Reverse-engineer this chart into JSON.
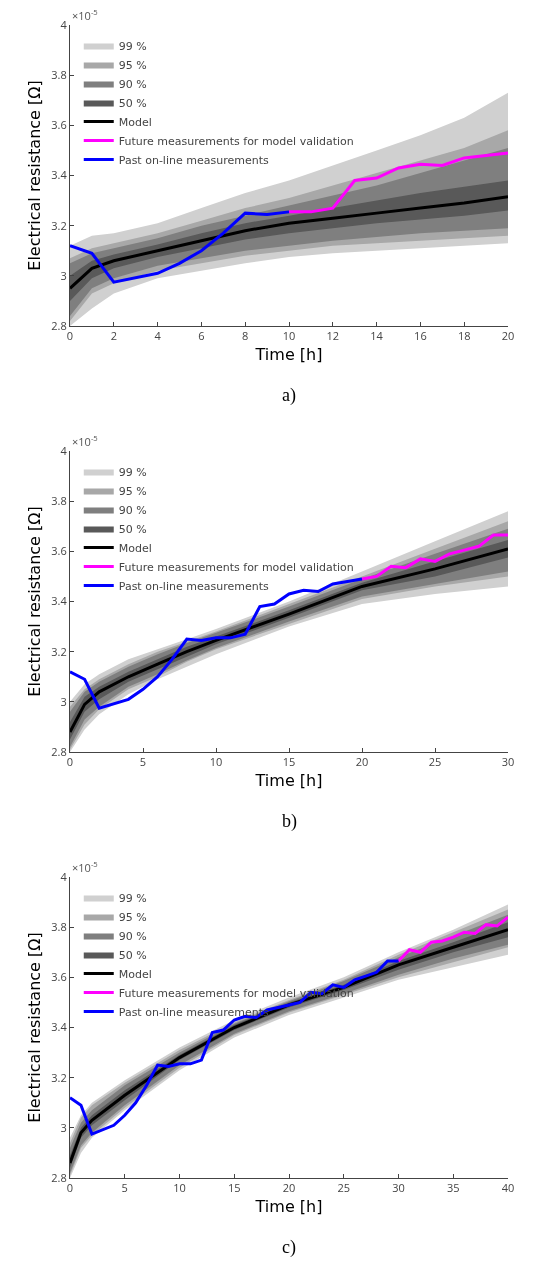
{
  "chart_data": [
    {
      "type": "line",
      "xlabel": "Time [h]",
      "ylabel": "Electrical resistance [Ω]",
      "annotations": [
        "×10$^{-5}$",
        "a)"
      ],
      "xlim": [
        0,
        20
      ],
      "xticks": [
        0,
        2,
        4,
        6,
        8,
        10,
        12,
        14,
        16,
        18,
        20
      ],
      "ylim": [
        2.8,
        4
      ],
      "yticks": [
        2.8,
        3,
        3.2,
        3.4,
        3.6,
        3.8,
        4
      ],
      "grid": false,
      "legend": "top left",
      "marker": "none",
      "line_style": "solid",
      "series": [
        {
          "name": "99 %",
          "type": "area",
          "color": "#d0d0d0",
          "x": [
            0,
            1,
            2,
            4,
            6,
            8,
            10,
            12,
            14,
            16,
            18,
            20
          ],
          "values": [
            null,
            null,
            null,
            null,
            null,
            null,
            null,
            null,
            null,
            null,
            null,
            null
          ],
          "upper": [
            3.12,
            3.16,
            3.17,
            3.21,
            3.27,
            3.33,
            3.38,
            3.44,
            3.5,
            3.56,
            3.63,
            3.73
          ],
          "lower": [
            2.8,
            2.87,
            2.93,
            2.99,
            3.02,
            3.05,
            3.075,
            3.09,
            3.1,
            3.11,
            3.12,
            3.13
          ]
        },
        {
          "name": "95 %",
          "type": "area",
          "color": "#a8a8a8",
          "x": [
            0,
            1,
            2,
            4,
            6,
            8,
            10,
            12,
            14,
            16,
            18,
            20
          ],
          "values": [
            null,
            null,
            null,
            null,
            null,
            null,
            null,
            null,
            null,
            null,
            null,
            null
          ],
          "upper": [
            3.07,
            3.11,
            3.13,
            3.17,
            3.22,
            3.27,
            3.31,
            3.36,
            3.41,
            3.46,
            3.51,
            3.58
          ],
          "lower": [
            2.82,
            2.93,
            2.97,
            3.02,
            3.05,
            3.08,
            3.1,
            3.12,
            3.13,
            3.14,
            3.15,
            3.16
          ]
        },
        {
          "name": "90 %",
          "type": "area",
          "color": "#7f7f7f",
          "x": [
            0,
            1,
            2,
            4,
            6,
            8,
            10,
            12,
            14,
            16,
            18,
            20
          ],
          "values": [
            null,
            null,
            null,
            null,
            null,
            null,
            null,
            null,
            null,
            null,
            null,
            null
          ],
          "upper": [
            3.05,
            3.09,
            3.11,
            3.15,
            3.2,
            3.24,
            3.28,
            3.32,
            3.36,
            3.41,
            3.46,
            3.51
          ],
          "lower": [
            2.84,
            2.95,
            2.99,
            3.04,
            3.07,
            3.1,
            3.12,
            3.14,
            3.155,
            3.17,
            3.18,
            3.19
          ]
        },
        {
          "name": "50 %",
          "type": "area",
          "color": "#595959",
          "x": [
            0,
            1,
            2,
            4,
            6,
            8,
            10,
            12,
            14,
            16,
            18,
            20
          ],
          "values": [
            null,
            null,
            null,
            null,
            null,
            null,
            null,
            null,
            null,
            null,
            null,
            null
          ],
          "upper": [
            3.0,
            3.06,
            3.085,
            3.125,
            3.17,
            3.21,
            3.24,
            3.27,
            3.3,
            3.33,
            3.355,
            3.38
          ],
          "lower": [
            2.9,
            2.99,
            3.03,
            3.075,
            3.11,
            3.145,
            3.17,
            3.19,
            3.21,
            3.225,
            3.24,
            3.26
          ]
        },
        {
          "name": "Model",
          "type": "line",
          "color": "#000000",
          "x": [
            0,
            1,
            2,
            4,
            6,
            8,
            10,
            12,
            14,
            16,
            18,
            20
          ],
          "values": [
            2.95,
            3.03,
            3.06,
            3.1,
            3.14,
            3.18,
            3.21,
            3.23,
            3.25,
            3.27,
            3.29,
            3.315
          ]
        },
        {
          "name": "Future measurements for model validation",
          "type": "line",
          "color": "#ff00ff",
          "x": [
            10,
            11,
            12,
            13,
            14,
            15,
            16,
            17,
            18,
            19,
            20
          ],
          "values": [
            3.255,
            3.255,
            3.27,
            3.38,
            3.39,
            3.43,
            3.445,
            3.44,
            3.47,
            3.48,
            3.49
          ]
        },
        {
          "name": "Past on-line measurements",
          "type": "line",
          "color": "#0000ff",
          "x": [
            0,
            1,
            2,
            4,
            5,
            6,
            7,
            8,
            9,
            10
          ],
          "values": [
            3.12,
            3.09,
            2.975,
            3.01,
            3.05,
            3.1,
            3.17,
            3.25,
            3.245,
            3.255
          ]
        }
      ]
    },
    {
      "type": "line",
      "xlabel": "Time [h]",
      "ylabel": "Electrical resistance [Ω]",
      "annotations": [
        "×10$^{-5}$",
        "b)"
      ],
      "xlim": [
        0,
        30
      ],
      "xticks": [
        0,
        5,
        10,
        15,
        20,
        25,
        30
      ],
      "ylim": [
        2.8,
        4
      ],
      "yticks": [
        2.8,
        3,
        3.2,
        3.4,
        3.6,
        3.8,
        4
      ],
      "grid": false,
      "legend": "top left",
      "marker": "none",
      "line_style": "solid",
      "series": [
        {
          "name": "99 %",
          "type": "area",
          "color": "#d0d0d0",
          "x": [
            0,
            1,
            2,
            4,
            6,
            8,
            10,
            15,
            20,
            25,
            30
          ],
          "values": [
            null,
            null,
            null,
            null,
            null,
            null,
            null,
            null,
            null,
            null,
            null
          ],
          "upper": [
            3.0,
            3.07,
            3.11,
            3.17,
            3.21,
            3.25,
            3.29,
            3.4,
            3.52,
            3.64,
            3.76
          ],
          "lower": [
            2.8,
            2.89,
            2.95,
            3.03,
            3.09,
            3.14,
            3.19,
            3.3,
            3.39,
            3.43,
            3.46
          ]
        },
        {
          "name": "95 %",
          "type": "area",
          "color": "#a8a8a8",
          "x": [
            0,
            1,
            2,
            4,
            6,
            8,
            10,
            15,
            20,
            25,
            30
          ],
          "values": [
            null,
            null,
            null,
            null,
            null,
            null,
            null,
            null,
            null,
            null,
            null
          ],
          "upper": [
            2.98,
            3.05,
            3.09,
            3.15,
            3.2,
            3.24,
            3.28,
            3.39,
            3.5,
            3.61,
            3.72
          ],
          "lower": [
            2.81,
            2.91,
            2.97,
            3.05,
            3.1,
            3.16,
            3.21,
            3.31,
            3.41,
            3.46,
            3.5
          ]
        },
        {
          "name": "90 %",
          "type": "area",
          "color": "#7f7f7f",
          "x": [
            0,
            1,
            2,
            4,
            6,
            8,
            10,
            15,
            20,
            25,
            30
          ],
          "values": [
            null,
            null,
            null,
            null,
            null,
            null,
            null,
            null,
            null,
            null,
            null
          ],
          "upper": [
            2.96,
            3.04,
            3.08,
            3.14,
            3.19,
            3.235,
            3.275,
            3.38,
            3.49,
            3.59,
            3.69
          ],
          "lower": [
            2.82,
            2.93,
            2.98,
            3.06,
            3.11,
            3.165,
            3.215,
            3.32,
            3.42,
            3.47,
            3.52
          ]
        },
        {
          "name": "50 %",
          "type": "area",
          "color": "#595959",
          "x": [
            0,
            1,
            2,
            4,
            6,
            8,
            10,
            15,
            20,
            25,
            30
          ],
          "values": [
            null,
            null,
            null,
            null,
            null,
            null,
            null,
            null,
            null,
            null,
            null
          ],
          "upper": [
            2.92,
            3.02,
            3.06,
            3.12,
            3.17,
            3.22,
            3.26,
            3.365,
            3.475,
            3.56,
            3.645
          ],
          "lower": [
            2.85,
            2.96,
            3.01,
            3.08,
            3.13,
            3.18,
            3.23,
            3.335,
            3.445,
            3.5,
            3.575
          ]
        },
        {
          "name": "Model",
          "type": "line",
          "color": "#000000",
          "x": [
            0,
            1,
            2,
            4,
            6,
            8,
            10,
            15,
            20,
            25,
            30
          ],
          "values": [
            2.88,
            2.99,
            3.04,
            3.1,
            3.15,
            3.2,
            3.245,
            3.35,
            3.46,
            3.53,
            3.61
          ]
        },
        {
          "name": "Future measurements for model validation",
          "type": "line",
          "color": "#ff00ff",
          "x": [
            20,
            21,
            22,
            23,
            24,
            25,
            26,
            27,
            28,
            29,
            30
          ],
          "values": [
            3.49,
            3.5,
            3.54,
            3.535,
            3.57,
            3.56,
            3.59,
            3.605,
            3.62,
            3.665,
            3.665
          ]
        },
        {
          "name": "Past on-line measurements",
          "type": "line",
          "color": "#0000ff",
          "x": [
            0,
            1,
            2,
            4,
            5,
            6,
            7,
            8,
            9,
            10,
            11,
            12,
            13,
            14,
            15,
            16,
            17,
            18,
            19,
            20
          ],
          "values": [
            3.12,
            3.09,
            2.975,
            3.01,
            3.05,
            3.1,
            3.17,
            3.25,
            3.245,
            3.255,
            3.255,
            3.27,
            3.38,
            3.39,
            3.43,
            3.445,
            3.44,
            3.47,
            3.48,
            3.49
          ]
        }
      ]
    },
    {
      "type": "line",
      "xlabel": "Time [h]",
      "ylabel": "Electrical resistance [Ω]",
      "annotations": [
        "×10$^{-5}$",
        "c)"
      ],
      "xlim": [
        0,
        40
      ],
      "xticks": [
        0,
        5,
        10,
        15,
        20,
        25,
        30,
        35,
        40
      ],
      "ylim": [
        2.8,
        4
      ],
      "yticks": [
        2.8,
        3,
        3.2,
        3.4,
        3.6,
        3.8,
        4
      ],
      "grid": false,
      "legend": "top left",
      "marker": "none",
      "line_style": "solid",
      "series": [
        {
          "name": "99 %",
          "type": "area",
          "color": "#d0d0d0",
          "x": [
            0,
            1,
            2,
            5,
            10,
            15,
            20,
            25,
            30,
            35,
            40
          ],
          "values": [
            null,
            null,
            null,
            null,
            null,
            null,
            null,
            null,
            null,
            null,
            null
          ],
          "upper": [
            2.96,
            3.05,
            3.1,
            3.19,
            3.32,
            3.43,
            3.52,
            3.6,
            3.7,
            3.79,
            3.89
          ],
          "lower": [
            2.8,
            2.9,
            2.96,
            3.07,
            3.23,
            3.36,
            3.45,
            3.52,
            3.59,
            3.64,
            3.69
          ]
        },
        {
          "name": "95 %",
          "type": "area",
          "color": "#a8a8a8",
          "x": [
            0,
            1,
            2,
            5,
            10,
            15,
            20,
            25,
            30,
            35,
            40
          ],
          "values": [
            null,
            null,
            null,
            null,
            null,
            null,
            null,
            null,
            null,
            null,
            null
          ],
          "upper": [
            2.94,
            3.04,
            3.09,
            3.18,
            3.31,
            3.42,
            3.51,
            3.59,
            3.69,
            3.78,
            3.87
          ],
          "lower": [
            2.81,
            2.92,
            2.97,
            3.08,
            3.24,
            3.37,
            3.46,
            3.53,
            3.6,
            3.66,
            3.72
          ]
        },
        {
          "name": "90 %",
          "type": "area",
          "color": "#7f7f7f",
          "x": [
            0,
            1,
            2,
            5,
            10,
            15,
            20,
            25,
            30,
            35,
            40
          ],
          "values": [
            null,
            null,
            null,
            null,
            null,
            null,
            null,
            null,
            null,
            null,
            null
          ],
          "upper": [
            2.92,
            3.02,
            3.07,
            3.17,
            3.3,
            3.415,
            3.505,
            3.585,
            3.68,
            3.765,
            3.85
          ],
          "lower": [
            2.82,
            2.93,
            2.98,
            3.09,
            3.25,
            3.375,
            3.465,
            3.535,
            3.61,
            3.675,
            3.73
          ]
        },
        {
          "name": "50 %",
          "type": "area",
          "color": "#595959",
          "x": [
            0,
            1,
            2,
            5,
            10,
            15,
            20,
            25,
            30,
            35,
            40
          ],
          "values": [
            null,
            null,
            null,
            null,
            null,
            null,
            null,
            null,
            null,
            null,
            null
          ],
          "upper": [
            2.89,
            3.0,
            3.05,
            3.15,
            3.29,
            3.41,
            3.5,
            3.57,
            3.665,
            3.74,
            3.82
          ],
          "lower": [
            2.84,
            2.96,
            3.01,
            3.11,
            3.27,
            3.39,
            3.48,
            3.55,
            3.63,
            3.7,
            3.76
          ]
        },
        {
          "name": "Model",
          "type": "line",
          "color": "#000000",
          "x": [
            0,
            1,
            2,
            5,
            10,
            15,
            20,
            25,
            30,
            35,
            40
          ],
          "values": [
            2.86,
            2.98,
            3.03,
            3.13,
            3.28,
            3.4,
            3.49,
            3.56,
            3.65,
            3.72,
            3.79
          ]
        },
        {
          "name": "Future measurements for model validation",
          "type": "line",
          "color": "#ff00ff",
          "x": [
            30,
            31,
            32,
            33,
            34,
            35,
            36,
            37,
            38,
            39,
            40
          ],
          "values": [
            3.665,
            3.71,
            3.7,
            3.74,
            3.745,
            3.76,
            3.78,
            3.775,
            3.81,
            3.805,
            3.84
          ]
        },
        {
          "name": "Past on-line measurements",
          "type": "line",
          "color": "#0000ff",
          "x": [
            0,
            1,
            2,
            4,
            5,
            6,
            7,
            8,
            9,
            10,
            11,
            12,
            13,
            14,
            15,
            16,
            17,
            18,
            19,
            20,
            21,
            22,
            23,
            24,
            25,
            26,
            27,
            28,
            29,
            30
          ],
          "values": [
            3.12,
            3.09,
            2.975,
            3.01,
            3.05,
            3.1,
            3.17,
            3.25,
            3.245,
            3.255,
            3.255,
            3.27,
            3.38,
            3.39,
            3.43,
            3.445,
            3.44,
            3.47,
            3.48,
            3.49,
            3.5,
            3.54,
            3.535,
            3.57,
            3.56,
            3.59,
            3.605,
            3.62,
            3.665,
            3.665
          ]
        }
      ]
    }
  ]
}
